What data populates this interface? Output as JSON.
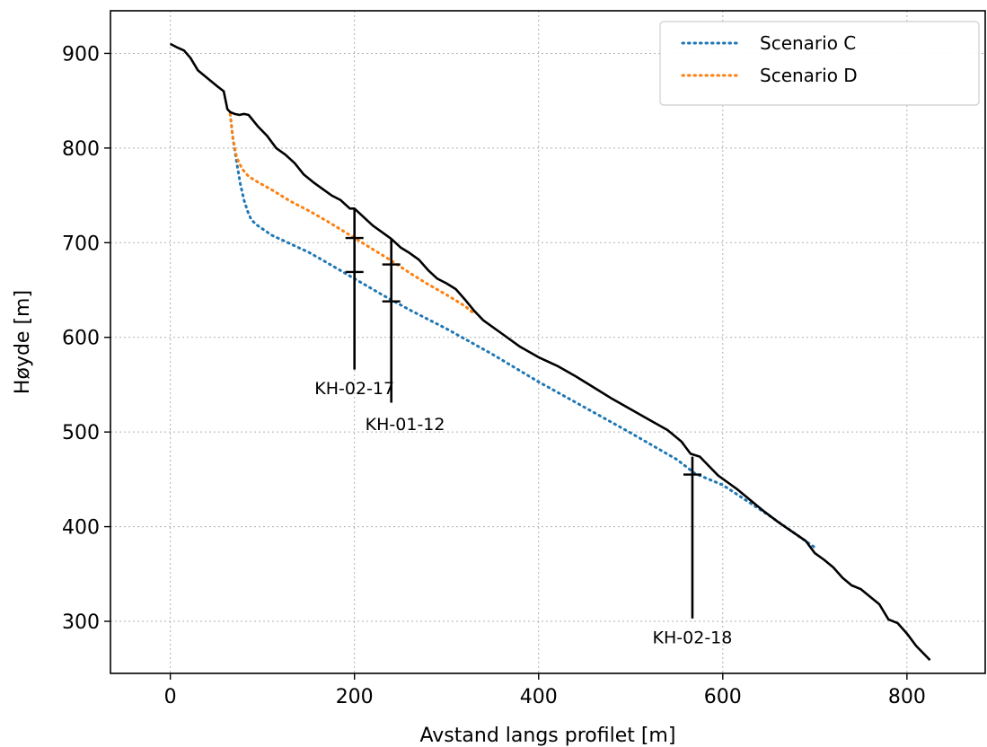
{
  "chart_data": {
    "type": "line",
    "xlabel": "Avstand langs profilet [m]",
    "ylabel": "Høyde [m]",
    "xlim": [
      -65,
      885
    ],
    "ylim": [
      245,
      945
    ],
    "xticks": [
      0,
      200,
      400,
      600,
      800
    ],
    "yticks": [
      300,
      400,
      500,
      600,
      700,
      800,
      900
    ],
    "grid": true,
    "legend_position": "top-right",
    "terrain": {
      "color": "#000000",
      "x": [
        0,
        8,
        15,
        22,
        30,
        40,
        50,
        58,
        62,
        65,
        70,
        75,
        80,
        85,
        95,
        105,
        115,
        125,
        135,
        145,
        155,
        165,
        175,
        185,
        195,
        200,
        210,
        220,
        230,
        240,
        250,
        260,
        270,
        280,
        290,
        300,
        310,
        320,
        330,
        340,
        360,
        380,
        400,
        420,
        440,
        460,
        480,
        500,
        520,
        540,
        555,
        565,
        575,
        585,
        595,
        605,
        615,
        630,
        645,
        660,
        675,
        690,
        700,
        710,
        720,
        730,
        740,
        750,
        760,
        770,
        780,
        790,
        800,
        810,
        825
      ],
      "y": [
        910,
        906,
        903,
        895,
        882,
        874,
        866,
        860,
        841,
        838,
        836,
        835,
        836,
        835,
        823,
        813,
        800,
        793,
        784,
        772,
        764,
        757,
        750,
        745,
        736,
        736,
        727,
        718,
        711,
        704,
        695,
        689,
        682,
        671,
        662,
        657,
        651,
        640,
        628,
        618,
        604,
        590,
        579,
        570,
        559,
        547,
        535,
        524,
        513,
        502,
        490,
        477,
        474,
        464,
        454,
        447,
        440,
        428,
        416,
        405,
        395,
        385,
        372,
        365,
        357,
        346,
        338,
        334,
        326,
        318,
        302,
        298,
        287,
        274,
        259
      ]
    },
    "series": [
      {
        "name": "Scenario C",
        "color": "#1f77b4",
        "x": [
          65,
          68,
          72,
          76,
          80,
          84,
          88,
          95,
          110,
          130,
          150,
          170,
          200,
          230,
          260,
          300,
          350,
          400,
          450,
          500,
          550,
          570,
          600,
          650,
          700
        ],
        "y": [
          836,
          810,
          785,
          762,
          745,
          733,
          724,
          718,
          708,
          699,
          690,
          679,
          662,
          645,
          629,
          609,
          582,
          553,
          526,
          499,
          471,
          456,
          444,
          412,
          378
        ]
      },
      {
        "name": "Scenario D",
        "color": "#ff7f0e",
        "x": [
          65,
          68,
          72,
          78,
          85,
          95,
          110,
          130,
          150,
          170,
          200,
          220,
          240,
          260,
          280,
          300,
          320,
          330
        ],
        "y": [
          836,
          810,
          790,
          778,
          770,
          764,
          756,
          744,
          734,
          723,
          705,
          693,
          681,
          668,
          656,
          645,
          633,
          625
        ]
      }
    ],
    "boreholes": [
      {
        "label": "KH-02-17",
        "x": 200,
        "y_top": 736,
        "y_bottom": 566,
        "marks": [
          705,
          669
        ],
        "label_x": 200,
        "label_y": 540
      },
      {
        "label": "KH-01-12",
        "x": 240,
        "y_top": 704,
        "y_bottom": 531,
        "marks": [
          677,
          638
        ],
        "label_x": 255,
        "label_y": 502
      },
      {
        "label": "KH-02-18",
        "x": 567,
        "y_top": 474,
        "y_bottom": 303,
        "marks": [
          455
        ],
        "label_x": 567,
        "label_y": 277
      }
    ]
  }
}
